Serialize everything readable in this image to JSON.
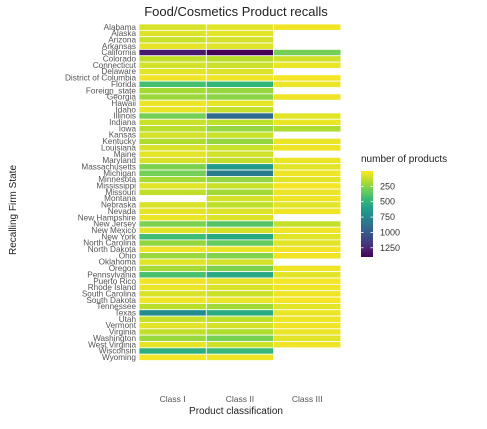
{
  "chart_data": {
    "type": "heatmap",
    "title": "Food/Cosmetics Product recalls",
    "xlabel": "Product classification",
    "ylabel": "Recalling Firm State",
    "x_categories": [
      "Class I",
      "Class II",
      "Class III"
    ],
    "y_categories": [
      "Alabama",
      "Alaska",
      "Arizona",
      "Arkansas",
      "California",
      "Colorado",
      "Connecticut",
      "Delaware",
      "District of Columbia",
      "Florida",
      "Foreign_state",
      "Georgia",
      "Hawaii",
      "Idaho",
      "Illinois",
      "Indiana",
      "Iowa",
      "Kansas",
      "Kentucky",
      "Louisiana",
      "Maine",
      "Maryland",
      "Massachusetts",
      "Michigan",
      "Minnesota",
      "Mississippi",
      "Missouri",
      "Montana",
      "Nebraska",
      "Nevada",
      "New Hampshire",
      "New Jersey",
      "New Mexico",
      "New York",
      "North Carolina",
      "North Dakota",
      "Ohio",
      "Oklahoma",
      "Oregon",
      "Pennsylvania",
      "Puerto Rico",
      "Rhode Island",
      "South Carolina",
      "South Dakota",
      "Tennessee",
      "Texas",
      "Utah",
      "Vermont",
      "Virginia",
      "Washington",
      "West Virginia",
      "Wisconsin",
      "Wyoming"
    ],
    "values": [
      [
        80,
        60,
        30
      ],
      [
        70,
        60,
        null
      ],
      [
        110,
        90,
        null
      ],
      [
        50,
        70,
        null
      ],
      [
        1300,
        1400,
        300
      ],
      [
        130,
        150,
        100
      ],
      [
        90,
        110,
        40
      ],
      [
        60,
        70,
        null
      ],
      [
        30,
        30,
        20
      ],
      [
        420,
        480,
        40
      ],
      [
        190,
        220,
        null
      ],
      [
        210,
        250,
        30
      ],
      [
        40,
        50,
        null
      ],
      [
        40,
        120,
        null
      ],
      [
        300,
        920,
        60
      ],
      [
        110,
        140,
        40
      ],
      [
        150,
        230,
        170
      ],
      [
        90,
        110,
        null
      ],
      [
        170,
        230,
        40
      ],
      [
        80,
        110,
        30
      ],
      [
        60,
        100,
        null
      ],
      [
        80,
        130,
        40
      ],
      [
        280,
        640,
        60
      ],
      [
        300,
        820,
        30
      ],
      [
        190,
        230,
        60
      ],
      [
        60,
        110,
        20
      ],
      [
        130,
        200,
        40
      ],
      [
        null,
        90,
        30
      ],
      [
        80,
        140,
        60
      ],
      [
        50,
        70,
        30
      ],
      [
        40,
        70,
        null
      ],
      [
        280,
        380,
        120
      ],
      [
        60,
        90,
        30
      ],
      [
        440,
        560,
        60
      ],
      [
        230,
        340,
        60
      ],
      [
        30,
        40,
        20
      ],
      [
        220,
        270,
        30
      ],
      [
        60,
        90,
        null
      ],
      [
        190,
        280,
        30
      ],
      [
        410,
        560,
        60
      ],
      [
        30,
        50,
        20
      ],
      [
        40,
        80,
        30
      ],
      [
        80,
        110,
        30
      ],
      [
        30,
        40,
        20
      ],
      [
        150,
        200,
        60
      ],
      [
        720,
        540,
        40
      ],
      [
        120,
        140,
        30
      ],
      [
        60,
        90,
        30
      ],
      [
        130,
        170,
        40
      ],
      [
        220,
        290,
        60
      ],
      [
        50,
        110,
        30
      ],
      [
        520,
        460,
        null
      ],
      [
        20,
        30,
        null
      ]
    ],
    "legend": {
      "title": "number of products",
      "ticks": [
        250,
        500,
        750,
        1000,
        1250
      ],
      "domain": [
        0,
        1400
      ],
      "placement": "right"
    },
    "colors": {
      "scale": [
        "#fde725",
        "#b5de2b",
        "#6ece58",
        "#35b779",
        "#1f9e89",
        "#26828e",
        "#31688e",
        "#3e4989",
        "#482878",
        "#440154"
      ]
    },
    "grid": false
  }
}
